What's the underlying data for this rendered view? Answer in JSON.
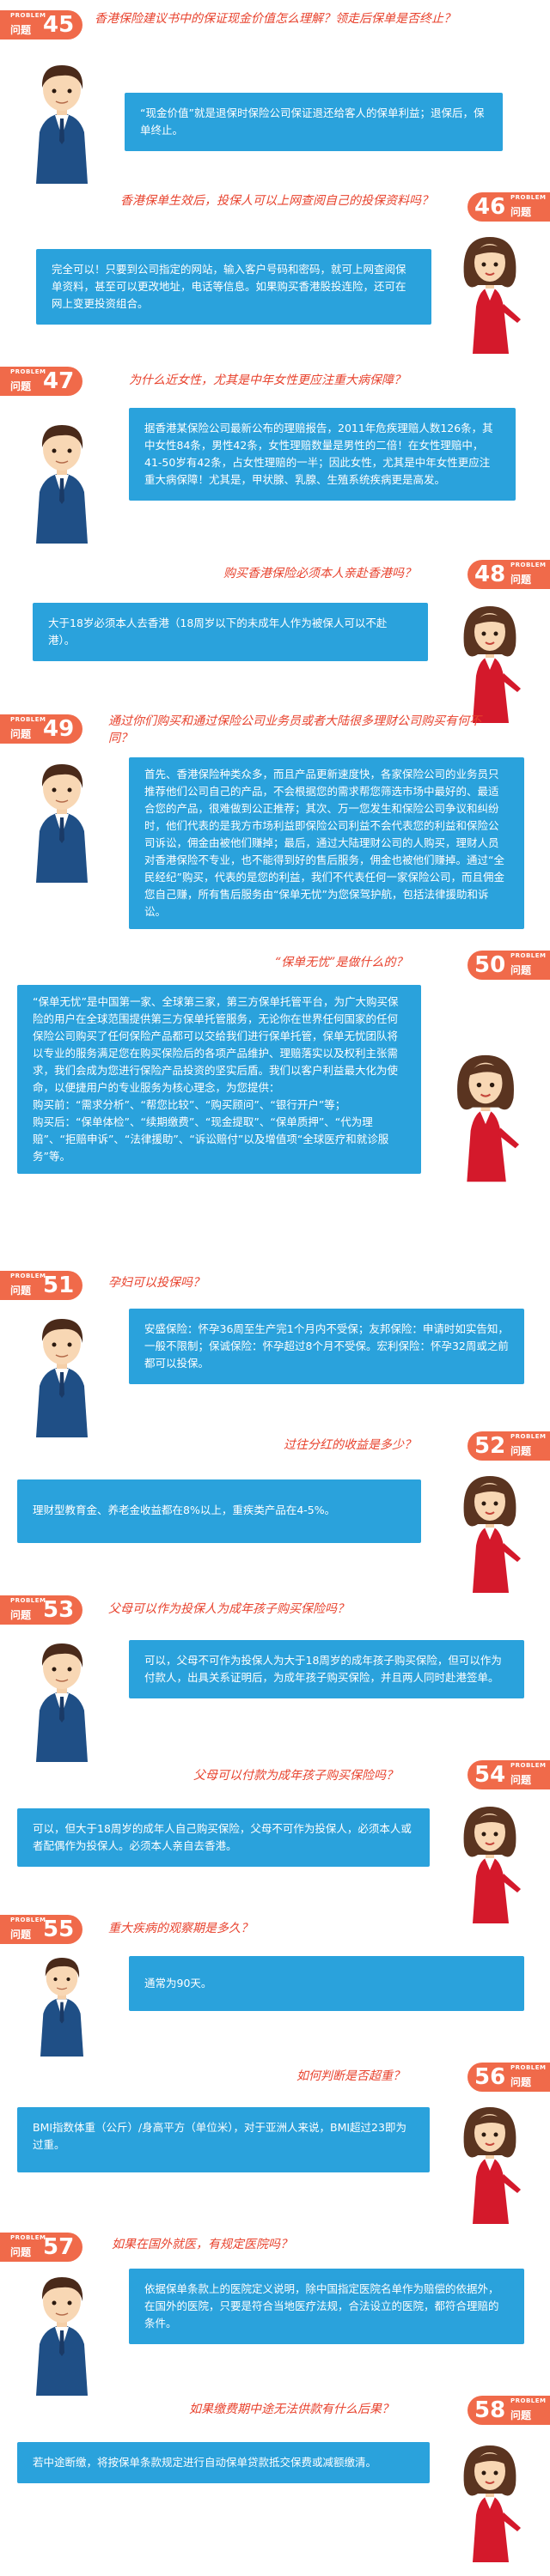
{
  "badge_label_small": "PROBLEM",
  "badge_label_word": "问题",
  "colors": {
    "accent_red": "#f06a4a",
    "question_red": "#e8422d",
    "answer_blue": "#2aa2dc",
    "man_suit": "#1f4f86",
    "woman_dress": "#d4192b"
  },
  "sections": [
    {
      "num": "45",
      "question": "香港保险建议书中的保证现金价值怎么理解？领走后保单是否终止？",
      "answer": "“现金价值”就是退保时保险公司保证退还给客人的保单利益；退保后，保单终止。"
    },
    {
      "num": "46",
      "question": "香港保单生效后，投保人可以上网查阅自己的投保资料吗？",
      "answer": "完全可以！只要到公司指定的网站，输入客户号码和密码，就可上网查阅保单资料，甚至可以更改地址，电话等信息。如果购买香港股投连险，还可在网上变更投资组合。"
    },
    {
      "num": "47",
      "question": "为什么近女性，尤其是中年女性更应注重大病保障？",
      "answer": "据香港某保险公司最新公布的理赔报告，2011年危疾理赔人数126条，其中女性84条，男性42条，女性理赔数量是男性的二倍！在女性理赔中，41-50岁有42条，占女性理赔的一半；因此女性，尤其是中年女性更应注重大病保障！尤其是，甲状腺、乳腺、生殖系统疾病更是高发。"
    },
    {
      "num": "48",
      "question": "购买香港保险必须本人亲赴香港吗？",
      "answer": "大于18岁必须本人去香港（18周岁以下的未成年人作为被保人可以不赴港）。"
    },
    {
      "num": "49",
      "question": "通过你们购买和通过保险公司业务员或者大陆很多理财公司购买有何不同？",
      "answer": "首先、香港保险种类众多，而且产品更新速度快，各家保险公司的业务员只推荐他们公司自己的产品，不会根据您的需求帮您筛选市场中最好的、最适合您的产品，很难做到公正推荐；其次、万一您发生和保险公司争议和纠纷时，他们代表的是我方市场利益即保险公司利益不会代表您的利益和保险公司诉讼，佣金由被他们赚掉；最后，通过大陆理财公司的人购买，理财人员对香港保险不专业，也不能得到好的售后服务，佣金也被他们赚掉。通过“全民经纪”购买，代表的是您的利益，我们不代表任何一家保险公司，而且佣金您自己赚，所有售后服务由“保单无忧”为您保驾护航，包括法律援助和诉讼。"
    },
    {
      "num": "50",
      "question": "“保单无忧”是做什么的？",
      "answer": "“保单无忧”是中国第一家、全球第三家，第三方保单托管平台，为广大购买保险的用户在全球范围提供第三方保单托管服务，无论你在世界任何国家的任何保险公司购买了任何保险产品都可以交给我们进行保单托管，保单无忧团队将以专业的服务满足您在购买保险后的各项产品维护、理赔落实以及权利主张需求，我们会成为您进行保险产品投资的坚实后盾。我们以客户利益最大化为使命，以便捷用户的专业服务为核心理念，为您提供：\n购买前：“需求分析”、“帮您比较”、“购买顾问”、“银行开户”等；\n购买后：“保单体检”、“续期缴费”、“现金提取”、“保单质押”、“代为理赔”、“拒赔申诉”、“法律援助”、“诉讼赔付”以及增值项“全球医疗和就诊服务”等。"
    },
    {
      "num": "51",
      "question": "孕妇可以投保吗？",
      "answer": "安盛保险：怀孕36周至生产完1个月内不受保；友邦保险：申请时如实告知，一般不限制；保诚保险：怀孕超过8个月不受保。宏利保险：怀孕32周或之前都可以投保。"
    },
    {
      "num": "52",
      "question": "过往分红的收益是多少？",
      "answer": "理财型教育金、养老金收益都在8%以上，重疾类产品在4-5%。"
    },
    {
      "num": "53",
      "question": "父母可以作为投保人为成年孩子购买保险吗？",
      "answer": "可以，父母不可作为投保人为大于18周岁的成年孩子购买保险，但可以作为付款人，出具关系证明后，为成年孩子购买保险，并且两人同时赴港签单。"
    },
    {
      "num": "54",
      "question": "父母可以付款为成年孩子购买保险吗？",
      "answer": "可以，但大于18周岁的成年人自己购买保险，父母不可作为投保人，必须本人或者配偶作为投保人。必须本人亲自去香港。"
    },
    {
      "num": "55",
      "question": "重大疾病的观察期是多久？",
      "answer": "通常为90天。"
    },
    {
      "num": "56",
      "question": "如何判断是否超重？",
      "answer": "BMI指数体重（公斤）/身高平方（单位米），对于亚洲人来说，BMI超过23即为过重。"
    },
    {
      "num": "57",
      "question": "如果在国外就医，有规定医院吗？",
      "answer": "依据保单条款上的医院定义说明，除中国指定医院名单作为赔偿的依据外，在国外的医院，只要是符合当地医疗法规，合法设立的医院，都符合理赔的条件。"
    },
    {
      "num": "58",
      "question": "如果缴费期中途无法供款有什么后果？",
      "answer": "若中途断缴，将按保单条款规定进行自动保单贷款抵交保费或减额缴清。"
    }
  ]
}
